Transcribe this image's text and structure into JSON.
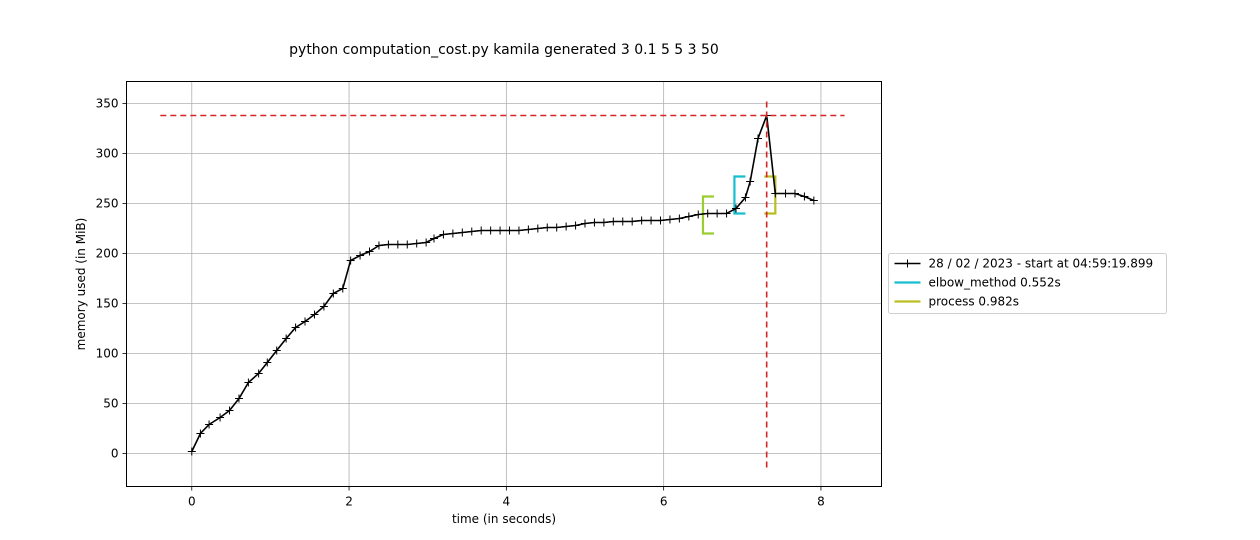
{
  "chart_data": {
    "type": "line",
    "title": "python computation_cost.py kamila generated 3 0.1 5 5 3 50",
    "xlabel": "time (in seconds)",
    "ylabel": "memory used (in MiB)",
    "xlim": [
      -0.83,
      8.77
    ],
    "ylim": [
      -33,
      372
    ],
    "xticks": [
      0,
      2,
      4,
      6,
      8
    ],
    "yticks": [
      0,
      50,
      100,
      150,
      200,
      250,
      300,
      350
    ],
    "grid": true,
    "legend_position": "right",
    "series": [
      {
        "name": "28 / 02 / 2023 - start at 04:59:19.899",
        "color": "#000000",
        "marker": "+",
        "x": [
          0.0,
          0.11,
          0.22,
          0.36,
          0.48,
          0.6,
          0.72,
          0.85,
          0.96,
          1.08,
          1.2,
          1.32,
          1.44,
          1.56,
          1.68,
          1.8,
          1.92,
          2.02,
          2.14,
          2.26,
          2.38,
          2.5,
          2.62,
          2.74,
          2.86,
          2.98,
          3.08,
          3.2,
          3.32,
          3.44,
          3.56,
          3.68,
          3.8,
          3.92,
          4.04,
          4.16,
          4.28,
          4.4,
          4.52,
          4.64,
          4.76,
          4.88,
          5.0,
          5.12,
          5.24,
          5.36,
          5.48,
          5.6,
          5.72,
          5.84,
          5.96,
          6.08,
          6.2,
          6.32,
          6.44,
          6.56,
          6.68,
          6.8,
          6.92,
          7.04,
          7.1,
          7.2,
          7.31,
          7.42,
          7.55,
          7.67,
          7.79,
          7.91
        ],
        "y": [
          2,
          20,
          29,
          36,
          43,
          55,
          71,
          80,
          91,
          103,
          115,
          126,
          132,
          139,
          147,
          160,
          165,
          193,
          198,
          202,
          208,
          209,
          209,
          209,
          210,
          211,
          215,
          219,
          220,
          221,
          222,
          223,
          223,
          223,
          223,
          223,
          224,
          225,
          226,
          226,
          227,
          228,
          230,
          231,
          231,
          232,
          232,
          232,
          233,
          233,
          233,
          234,
          235,
          237,
          239,
          240,
          240,
          240,
          245,
          256,
          272,
          315,
          338,
          260,
          260,
          260,
          257,
          253
        ]
      }
    ],
    "function_brackets": [
      {
        "name": "",
        "color": "#9acd32",
        "x_start": 6.5,
        "x_end": 6.64,
        "y_low": 220,
        "y_high": 257
      },
      {
        "name": "elbow_method 0.552s",
        "color": "#17becf",
        "x_start": 6.9,
        "x_end": 7.04,
        "y_low": 240,
        "y_high": 277
      },
      {
        "name": "process 0.982s",
        "color": "#bcbd22",
        "x_start": 7.42,
        "x_end": 7.28,
        "y_low": 240,
        "y_high": 277
      }
    ],
    "max_lines": {
      "color": "#d62728",
      "y_value": 338,
      "x_value": 7.31,
      "h_x_range": [
        -0.4,
        8.3
      ],
      "v_y_range": [
        -14,
        354
      ]
    },
    "legend": [
      {
        "label": "28 / 02 / 2023 - start at 04:59:19.899",
        "color": "#000000",
        "kind": "line-marker"
      },
      {
        "label": "elbow_method 0.552s",
        "color": "#17becf",
        "kind": "line"
      },
      {
        "label": "process 0.982s",
        "color": "#bcbd22",
        "kind": "line"
      }
    ]
  }
}
